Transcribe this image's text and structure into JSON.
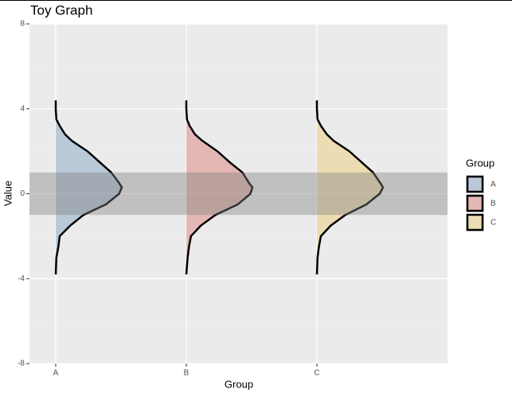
{
  "chart_data": {
    "type": "half-violin",
    "title": "Toy Graph",
    "x_label": "Group",
    "y_label": "Value",
    "legend_title": "Group",
    "categories": [
      "A",
      "B",
      "C"
    ],
    "y": [
      4.4,
      4.0,
      3.5,
      3.2,
      2.8,
      2.5,
      2.0,
      1.5,
      1.0,
      0.5,
      0.3,
      0.0,
      -0.5,
      -1.0,
      -1.5,
      -2.0,
      -2.5,
      -3.0,
      -3.8
    ],
    "series": [
      {
        "name": "A",
        "color": "#88a7c6",
        "density": [
          0,
          0,
          0.01,
          0.06,
          0.14,
          0.24,
          0.48,
          0.66,
          0.84,
          0.96,
          1.0,
          0.96,
          0.76,
          0.42,
          0.22,
          0.06,
          0.04,
          0.01,
          0
        ]
      },
      {
        "name": "B",
        "color": "#db837b",
        "density": [
          0,
          0,
          0.01,
          0.05,
          0.13,
          0.24,
          0.47,
          0.65,
          0.85,
          0.95,
          1.0,
          0.97,
          0.78,
          0.44,
          0.22,
          0.07,
          0.04,
          0.02,
          0
        ]
      },
      {
        "name": "C",
        "color": "#edcd7b",
        "density": [
          0,
          0,
          0.01,
          0.06,
          0.15,
          0.25,
          0.49,
          0.67,
          0.85,
          0.96,
          1.0,
          0.95,
          0.75,
          0.43,
          0.21,
          0.06,
          0.03,
          0.01,
          0
        ]
      }
    ],
    "alpha": 0.5,
    "band": {
      "ymin": -1,
      "ymax": 1,
      "color": "#7f7f7f",
      "alpha": 0.4
    },
    "ylim": [
      -8,
      8
    ],
    "yticks": [
      -8,
      -4,
      0,
      4,
      8
    ],
    "grid": true,
    "legend": "right"
  }
}
